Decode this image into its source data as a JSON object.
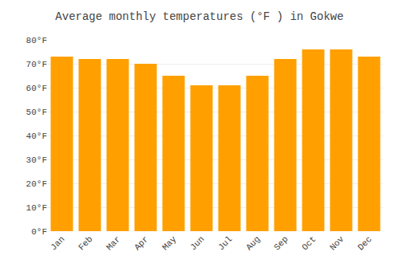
{
  "chart_data": {
    "type": "bar",
    "title": "Average monthly temperatures (°F ) in Gokwe",
    "categories": [
      "Jan",
      "Feb",
      "Mar",
      "Apr",
      "May",
      "Jun",
      "Jul",
      "Aug",
      "Sep",
      "Oct",
      "Nov",
      "Dec"
    ],
    "values": [
      73,
      72,
      72,
      70,
      65,
      61,
      61,
      65,
      72,
      76,
      76,
      73
    ],
    "color": "#FFA000",
    "ylim": [
      0,
      80
    ],
    "yticks": [
      {
        "value": 0,
        "label": "0°F"
      },
      {
        "value": 10,
        "label": "10°F"
      },
      {
        "value": 20,
        "label": "20°F"
      },
      {
        "value": 30,
        "label": "30°F"
      },
      {
        "value": 40,
        "label": "40°F"
      },
      {
        "value": 50,
        "label": "50°F"
      },
      {
        "value": 60,
        "label": "60°F"
      },
      {
        "value": 70,
        "label": "70°F"
      },
      {
        "value": 80,
        "label": "80°F"
      }
    ],
    "grid": true
  }
}
